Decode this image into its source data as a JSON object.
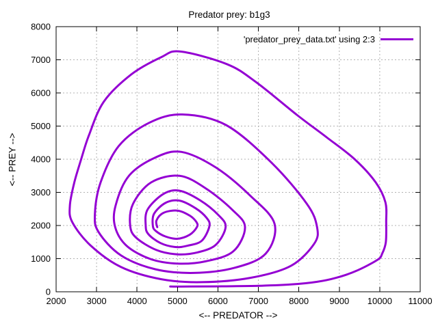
{
  "chart_data": {
    "type": "line",
    "title": "Predator prey: b1g3",
    "xlabel": "<-- PREDATOR -->",
    "ylabel": "<-- PREY -->",
    "legend": {
      "label": "'predator_prey_data.txt' using 2:3",
      "position": "top-right-inside"
    },
    "xlim": [
      2000,
      11000
    ],
    "ylim": [
      0,
      8000
    ],
    "xticks": [
      2000,
      3000,
      4000,
      5000,
      6000,
      7000,
      8000,
      9000,
      10000,
      11000
    ],
    "yticks": [
      0,
      1000,
      2000,
      3000,
      4000,
      5000,
      6000,
      7000,
      8000
    ],
    "grid": true,
    "line_color": "#9400D3",
    "grid_color": "#b0b0b0",
    "line_width": 3,
    "series": [
      {
        "name": "'predator_prey_data.txt' using 2:3",
        "points": [
          [
            4500,
            1950
          ],
          [
            4480,
            2150
          ],
          [
            4650,
            2380
          ],
          [
            5000,
            2450
          ],
          [
            5300,
            2300
          ],
          [
            5470,
            2100
          ],
          [
            5480,
            1950
          ],
          [
            5300,
            1720
          ],
          [
            5000,
            1600
          ],
          [
            4700,
            1670
          ],
          [
            4460,
            1840
          ],
          [
            4390,
            2000
          ],
          [
            4420,
            2350
          ],
          [
            4700,
            2680
          ],
          [
            5050,
            2750
          ],
          [
            5450,
            2520
          ],
          [
            5720,
            2230
          ],
          [
            5790,
            1980
          ],
          [
            5600,
            1540
          ],
          [
            5250,
            1390
          ],
          [
            4950,
            1350
          ],
          [
            4580,
            1470
          ],
          [
            4280,
            1740
          ],
          [
            4215,
            2000
          ],
          [
            4260,
            2480
          ],
          [
            4650,
            2950
          ],
          [
            5050,
            3050
          ],
          [
            5560,
            2760
          ],
          [
            6000,
            2330
          ],
          [
            6190,
            1960
          ],
          [
            5950,
            1420
          ],
          [
            5500,
            1190
          ],
          [
            5000,
            1130
          ],
          [
            4480,
            1260
          ],
          [
            3980,
            1630
          ],
          [
            3830,
            2000
          ],
          [
            3900,
            2650
          ],
          [
            4350,
            3300
          ],
          [
            5050,
            3500
          ],
          [
            5700,
            3120
          ],
          [
            6350,
            2480
          ],
          [
            6670,
            1950
          ],
          [
            6380,
            1220
          ],
          [
            5700,
            920
          ],
          [
            5000,
            850
          ],
          [
            4330,
            990
          ],
          [
            3740,
            1390
          ],
          [
            3460,
            1950
          ],
          [
            3470,
            2600
          ],
          [
            3800,
            3500
          ],
          [
            4450,
            4050
          ],
          [
            5100,
            4220
          ],
          [
            5950,
            3750
          ],
          [
            6800,
            2900
          ],
          [
            7400,
            2050
          ],
          [
            7180,
            1150
          ],
          [
            6400,
            720
          ],
          [
            5400,
            570
          ],
          [
            4450,
            680
          ],
          [
            3600,
            1100
          ],
          [
            3050,
            1800
          ],
          [
            2960,
            2350
          ],
          [
            3100,
            3300
          ],
          [
            3550,
            4400
          ],
          [
            4300,
            5100
          ],
          [
            5120,
            5350
          ],
          [
            6200,
            5030
          ],
          [
            7320,
            3900
          ],
          [
            8200,
            2650
          ],
          [
            8450,
            1950
          ],
          [
            8380,
            1450
          ],
          [
            7800,
            780
          ],
          [
            6800,
            420
          ],
          [
            5600,
            290
          ],
          [
            4600,
            380
          ],
          [
            3600,
            750
          ],
          [
            2850,
            1400
          ],
          [
            2400,
            2100
          ],
          [
            2340,
            2600
          ],
          [
            2450,
            3300
          ],
          [
            2620,
            4000
          ],
          [
            2810,
            4720
          ],
          [
            3180,
            5740
          ],
          [
            3860,
            6560
          ],
          [
            4600,
            7080
          ],
          [
            5070,
            7250
          ],
          [
            6220,
            6870
          ],
          [
            6950,
            6320
          ],
          [
            7960,
            5330
          ],
          [
            8700,
            4650
          ],
          [
            9380,
            4000
          ],
          [
            9900,
            3300
          ],
          [
            10140,
            2700
          ],
          [
            10160,
            2100
          ],
          [
            10150,
            1500
          ],
          [
            10060,
            1150
          ],
          [
            9940,
            960
          ],
          [
            9400,
            620
          ],
          [
            8920,
            420
          ],
          [
            8450,
            300
          ],
          [
            7800,
            220
          ],
          [
            7000,
            180
          ],
          [
            6100,
            165
          ],
          [
            5300,
            158
          ],
          [
            4820,
            158
          ]
        ]
      }
    ]
  }
}
